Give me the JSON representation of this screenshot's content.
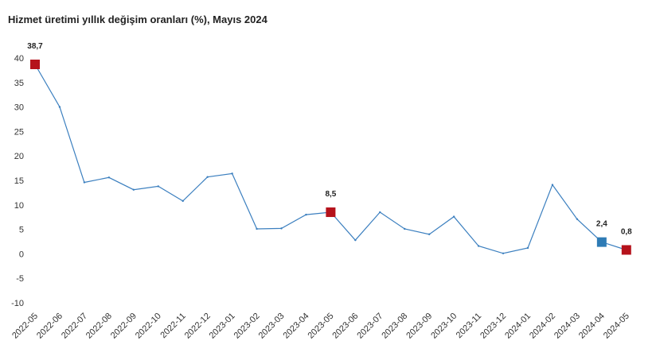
{
  "chart_data": {
    "type": "line",
    "title": "Hizmet üretimi yıllık değişim oranları (%), Mayıs 2024",
    "xlabel": "",
    "ylabel": "",
    "ylim": [
      -10,
      40
    ],
    "yticks": [
      "-10",
      "-5",
      "0",
      "5",
      "10",
      "15",
      "20",
      "25",
      "30",
      "35",
      "40"
    ],
    "grid": false,
    "categories": [
      "2022-05",
      "2022-06",
      "2022-07",
      "2022-08",
      "2022-09",
      "2022-10",
      "2022-11",
      "2022-12",
      "2023-01",
      "2023-02",
      "2023-03",
      "2023-04",
      "2023-05",
      "2023-06",
      "2023-07",
      "2023-08",
      "2023-09",
      "2023-10",
      "2023-11",
      "2023-12",
      "2024-01",
      "2024-02",
      "2024-03",
      "2024-04",
      "2024-05"
    ],
    "series": [
      {
        "values": [
          38.7,
          30.0,
          14.6,
          15.6,
          13.1,
          13.8,
          10.8,
          15.7,
          16.4,
          5.1,
          5.2,
          8.0,
          8.5,
          2.8,
          8.5,
          5.1,
          4.0,
          7.6,
          1.6,
          0.1,
          1.2,
          14.1,
          7.1,
          2.4,
          0.8
        ]
      }
    ],
    "annotations": [
      {
        "index": 0,
        "label": "38,7",
        "color": "#b5121b"
      },
      {
        "index": 12,
        "label": "8,5",
        "color": "#b5121b"
      },
      {
        "index": 23,
        "label": "2,4",
        "color": "#2e7bb5"
      },
      {
        "index": 24,
        "label": "0,8",
        "color": "#b5121b"
      }
    ],
    "line_color": "#3b7fbf"
  }
}
